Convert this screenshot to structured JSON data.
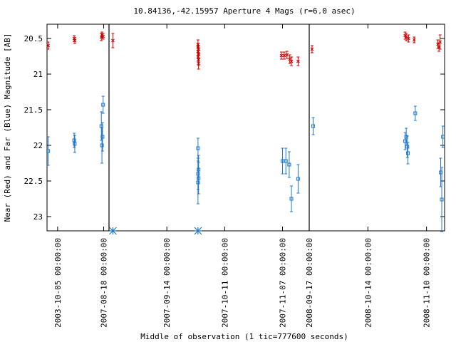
{
  "chart_data": {
    "type": "scatter",
    "title": "10.84136,-42.15957   Aperture 4 Mags (r=6.0 asec)",
    "xlabel": "Middle of observation (1 tic=777600 seconds)",
    "ylabel": "Near (Red) and Far (Blue) Magnitude [AB]",
    "y_inverted": true,
    "ylim": [
      23.2,
      20.3
    ],
    "yticks": [
      "20.5",
      "21",
      "21.5",
      "22",
      "22.5",
      "23"
    ],
    "y_tick_values": [
      20.5,
      21.0,
      21.5,
      22.0,
      22.5,
      23.0
    ],
    "panels": [
      {
        "xlim": [
          0,
          1.05
        ],
        "xticks": [
          {
            "label": "2003-10-05 00:00:00",
            "x": 0.18
          },
          {
            "label": "2007-08-18 00:00:00",
            "x": 0.96
          }
        ]
      },
      {
        "xlim": [
          0,
          3.6
        ],
        "xticks": [
          {
            "label": "2007-09-14 00:00:00",
            "x": 1.04
          },
          {
            "label": "2007-10-11 00:00:00",
            "x": 2.08
          },
          {
            "label": "2007-11-07 00:00:00",
            "x": 3.12
          }
        ]
      },
      {
        "xlim": [
          0,
          2.4
        ],
        "xticks": [
          {
            "label": "2008-09-17 00:00:00",
            "x": 0.0
          },
          {
            "label": "2008-10-14 00:00:00",
            "x": 1.04
          },
          {
            "label": "2008-11-10 00:00:00",
            "x": 2.08
          }
        ]
      }
    ],
    "series": [
      {
        "color": "#cc0000",
        "marker": "x",
        "points": [
          {
            "panel": 0,
            "x": 0.02,
            "y": 20.6,
            "err": 0.05
          },
          {
            "panel": 0,
            "x": 0.46,
            "y": 20.5,
            "err": 0.04
          },
          {
            "panel": 0,
            "x": 0.47,
            "y": 20.53,
            "err": 0.04
          },
          {
            "panel": 0,
            "x": 0.92,
            "y": 20.48,
            "err": 0.05
          },
          {
            "panel": 0,
            "x": 0.93,
            "y": 20.45,
            "err": 0.04
          },
          {
            "panel": 0,
            "x": 0.95,
            "y": 20.47,
            "err": 0.04
          },
          {
            "panel": 1,
            "x": 0.07,
            "y": 20.53,
            "err": 0.1
          },
          {
            "panel": 1,
            "x": 1.6,
            "y": 20.58,
            "err": 0.06
          },
          {
            "panel": 1,
            "x": 1.6,
            "y": 20.62,
            "err": 0.05
          },
          {
            "panel": 1,
            "x": 1.61,
            "y": 20.65,
            "err": 0.05
          },
          {
            "panel": 1,
            "x": 1.6,
            "y": 20.68,
            "err": 0.06
          },
          {
            "panel": 1,
            "x": 1.61,
            "y": 20.72,
            "err": 0.06
          },
          {
            "panel": 1,
            "x": 1.6,
            "y": 20.76,
            "err": 0.06
          },
          {
            "panel": 1,
            "x": 1.61,
            "y": 20.8,
            "err": 0.08
          },
          {
            "panel": 1,
            "x": 1.61,
            "y": 20.85,
            "err": 0.08
          },
          {
            "panel": 1,
            "x": 3.1,
            "y": 20.74,
            "err": 0.05
          },
          {
            "panel": 1,
            "x": 3.15,
            "y": 20.74,
            "err": 0.05
          },
          {
            "panel": 1,
            "x": 3.2,
            "y": 20.73,
            "err": 0.05
          },
          {
            "panel": 1,
            "x": 3.25,
            "y": 20.79,
            "err": 0.06
          },
          {
            "panel": 1,
            "x": 3.28,
            "y": 20.82,
            "err": 0.06
          },
          {
            "panel": 1,
            "x": 3.4,
            "y": 20.82,
            "err": 0.06
          },
          {
            "panel": 2,
            "x": 0.05,
            "y": 20.65,
            "err": 0.05
          },
          {
            "panel": 2,
            "x": 1.7,
            "y": 20.46,
            "err": 0.05
          },
          {
            "panel": 2,
            "x": 1.72,
            "y": 20.48,
            "err": 0.05
          },
          {
            "panel": 2,
            "x": 1.76,
            "y": 20.5,
            "err": 0.05
          },
          {
            "panel": 2,
            "x": 1.86,
            "y": 20.52,
            "err": 0.04
          },
          {
            "panel": 2,
            "x": 2.28,
            "y": 20.58,
            "err": 0.06
          },
          {
            "panel": 2,
            "x": 2.3,
            "y": 20.62,
            "err": 0.06
          },
          {
            "panel": 2,
            "x": 2.32,
            "y": 20.55,
            "err": 0.1
          }
        ]
      },
      {
        "color": "#1f77c8",
        "marker": "square",
        "points": [
          {
            "panel": 0,
            "x": 0.02,
            "y": 22.08,
            "err": 0.2
          },
          {
            "panel": 0,
            "x": 0.46,
            "y": 21.93,
            "err": 0.1
          },
          {
            "panel": 0,
            "x": 0.47,
            "y": 21.98,
            "err": 0.12
          },
          {
            "panel": 0,
            "x": 0.92,
            "y": 21.73,
            "err": 0.2
          },
          {
            "panel": 0,
            "x": 0.93,
            "y": 22.0,
            "err": 0.25
          },
          {
            "panel": 0,
            "x": 0.94,
            "y": 21.88,
            "err": 0.2
          },
          {
            "panel": 0,
            "x": 0.95,
            "y": 21.43,
            "err": 0.12
          },
          {
            "panel": 1,
            "x": 1.6,
            "y": 22.04,
            "err": 0.14
          },
          {
            "panel": 1,
            "x": 1.61,
            "y": 22.34,
            "err": 0.2
          },
          {
            "panel": 1,
            "x": 1.6,
            "y": 22.4,
            "err": 0.22
          },
          {
            "panel": 1,
            "x": 1.61,
            "y": 22.46,
            "err": 0.22
          },
          {
            "panel": 1,
            "x": 1.6,
            "y": 22.52,
            "err": 0.3
          },
          {
            "panel": 1,
            "x": 3.12,
            "y": 22.22,
            "err": 0.18
          },
          {
            "panel": 1,
            "x": 3.18,
            "y": 22.22,
            "err": 0.18
          },
          {
            "panel": 1,
            "x": 3.24,
            "y": 22.27,
            "err": 0.18
          },
          {
            "panel": 1,
            "x": 3.28,
            "y": 22.75,
            "err": 0.18
          },
          {
            "panel": 1,
            "x": 3.4,
            "y": 22.47,
            "err": 0.2
          },
          {
            "panel": 2,
            "x": 0.07,
            "y": 21.73,
            "err": 0.12
          },
          {
            "panel": 2,
            "x": 1.7,
            "y": 21.94,
            "err": 0.12
          },
          {
            "panel": 2,
            "x": 1.72,
            "y": 21.88,
            "err": 0.12
          },
          {
            "panel": 2,
            "x": 1.74,
            "y": 22.02,
            "err": 0.15
          },
          {
            "panel": 2,
            "x": 1.75,
            "y": 22.11,
            "err": 0.15
          },
          {
            "panel": 2,
            "x": 1.88,
            "y": 21.55,
            "err": 0.1
          },
          {
            "panel": 2,
            "x": 2.33,
            "y": 22.38,
            "err": 0.2
          },
          {
            "panel": 2,
            "x": 2.35,
            "y": 22.76,
            "err": 0.45
          },
          {
            "panel": 2,
            "x": 2.37,
            "y": 21.88,
            "err": 0.15
          }
        ]
      },
      {
        "color": "#1f77c8",
        "marker": "asterisk",
        "points": [
          {
            "panel": 1,
            "x": 0.07,
            "y": 23.2
          },
          {
            "panel": 1,
            "x": 1.6,
            "y": 23.2
          }
        ]
      }
    ]
  }
}
